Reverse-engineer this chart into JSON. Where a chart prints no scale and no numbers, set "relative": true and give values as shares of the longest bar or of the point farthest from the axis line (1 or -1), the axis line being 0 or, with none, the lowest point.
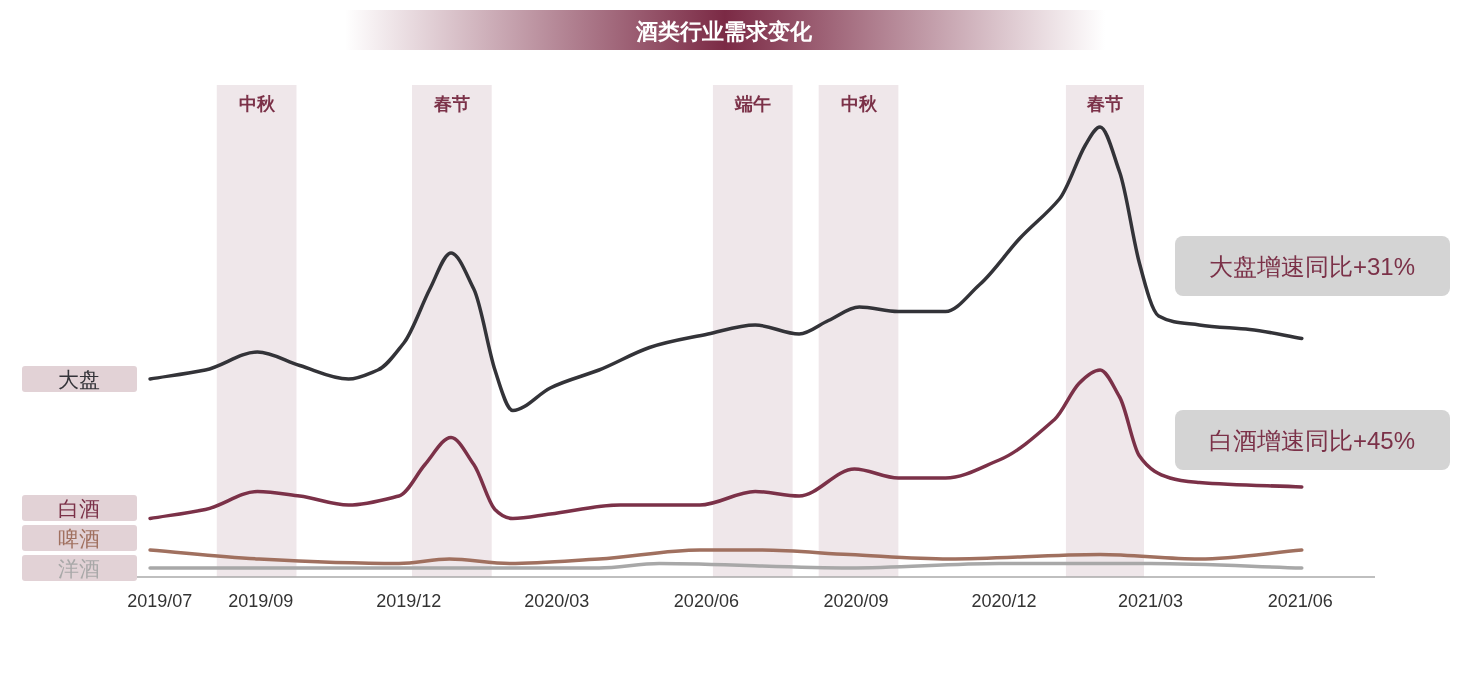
{
  "chart_data": {
    "type": "line",
    "title": "酒类行业需求变化",
    "relative": true,
    "tick_labels": "x",
    "xlim": [
      "2019-05-16",
      "2021-07-17"
    ],
    "xticks": [
      {
        "value": "2019-07",
        "label": "2019/07"
      },
      {
        "value": "2019-09",
        "label": "2019/09"
      },
      {
        "value": "2019-12",
        "label": "2019/12"
      },
      {
        "value": "2020-03",
        "label": "2020/03"
      },
      {
        "value": "2020-06",
        "label": "2020/06"
      },
      {
        "value": "2020-09",
        "label": "2020/09"
      },
      {
        "value": "2020-12",
        "label": "2020/12"
      },
      {
        "value": "2021-03",
        "label": "2021/03"
      },
      {
        "value": "2021-06",
        "label": "2021/06"
      }
    ],
    "bands": [
      {
        "axis": "x",
        "from": "2019-08-05",
        "to": "2019-09-23",
        "label": "中秋",
        "color": "#efe7ea"
      },
      {
        "axis": "x",
        "from": "2019-12-03",
        "to": "2020-01-21",
        "label": "春节",
        "color": "#efe7ea"
      },
      {
        "axis": "x",
        "from": "2020-06-05",
        "to": "2020-07-24",
        "label": "端午",
        "color": "#efe7ea"
      },
      {
        "axis": "x",
        "from": "2020-08-09",
        "to": "2020-09-27",
        "label": "中秋",
        "color": "#efe7ea"
      },
      {
        "axis": "x",
        "from": "2021-01-08",
        "to": "2021-02-25",
        "label": "春节",
        "color": "#efe7ea"
      }
    ],
    "series": [
      {
        "name": "大盘",
        "color": "#333338",
        "x": [
          "2019-06-25",
          "2019-07-29",
          "2019-08-30",
          "2019-09-25",
          "2019-10-25",
          "2019-11-12",
          "2019-11-28",
          "2019-12-14",
          "2019-12-27",
          "2020-01-10",
          "2020-01-23",
          "2020-02-03",
          "2020-02-26",
          "2020-03-27",
          "2020-04-27",
          "2020-06-02",
          "2020-07-01",
          "2020-07-28",
          "2020-08-15",
          "2020-09-03",
          "2020-09-27",
          "2020-10-26",
          "2020-11-16",
          "2020-12-10",
          "2021-01-04",
          "2021-01-20",
          "2021-01-29",
          "2021-02-10",
          "2021-02-22",
          "2021-03-06",
          "2021-03-31",
          "2021-05-01",
          "2021-06-02"
        ],
        "values": [
          0.44,
          0.46,
          0.5,
          0.47,
          0.44,
          0.46,
          0.52,
          0.64,
          0.72,
          0.64,
          0.46,
          0.37,
          0.42,
          0.46,
          0.51,
          0.54,
          0.56,
          0.54,
          0.57,
          0.6,
          0.59,
          0.59,
          0.65,
          0.75,
          0.84,
          0.96,
          1.0,
          0.9,
          0.7,
          0.58,
          0.56,
          0.55,
          0.53
        ]
      },
      {
        "name": "白酒",
        "color": "#7b3148",
        "x": [
          "2019-06-25",
          "2019-07-29",
          "2019-08-30",
          "2019-09-25",
          "2019-10-25",
          "2019-11-25",
          "2019-12-11",
          "2019-12-27",
          "2020-01-10",
          "2020-01-23",
          "2020-02-03",
          "2020-02-26",
          "2020-04-09",
          "2020-05-28",
          "2020-07-01",
          "2020-07-28",
          "2020-08-31",
          "2020-09-27",
          "2020-10-26",
          "2020-11-28",
          "2021-01-01",
          "2021-01-16",
          "2021-01-29",
          "2021-02-10",
          "2021-02-22",
          "2021-03-13",
          "2021-03-31",
          "2021-06-02"
        ],
        "values": [
          0.13,
          0.15,
          0.19,
          0.18,
          0.16,
          0.18,
          0.25,
          0.31,
          0.25,
          0.15,
          0.13,
          0.14,
          0.16,
          0.16,
          0.19,
          0.18,
          0.24,
          0.22,
          0.22,
          0.26,
          0.35,
          0.43,
          0.46,
          0.4,
          0.27,
          0.22,
          0.21,
          0.2
        ]
      },
      {
        "name": "啤酒",
        "color": "#a0705f",
        "x": [
          "2019-06-25",
          "2019-08-31",
          "2019-11-25",
          "2019-12-26",
          "2020-02-01",
          "2020-03-27",
          "2020-05-28",
          "2020-07-03",
          "2020-08-28",
          "2020-10-28",
          "2021-01-29",
          "2021-03-31",
          "2021-06-02"
        ],
        "values": [
          0.06,
          0.04,
          0.03,
          0.04,
          0.03,
          0.04,
          0.06,
          0.06,
          0.05,
          0.04,
          0.05,
          0.04,
          0.06
        ]
      },
      {
        "name": "洋酒",
        "color": "#a8a8a8",
        "x": [
          "2019-06-25",
          "2019-11-25",
          "2020-03-27",
          "2020-05-03",
          "2020-08-28",
          "2020-11-28",
          "2021-03-01",
          "2021-06-02"
        ],
        "values": [
          0.02,
          0.02,
          0.02,
          0.03,
          0.02,
          0.03,
          0.03,
          0.02
        ]
      }
    ],
    "annotations": [
      "大盘增速同比+31%",
      "白酒增速同比+45%"
    ]
  }
}
